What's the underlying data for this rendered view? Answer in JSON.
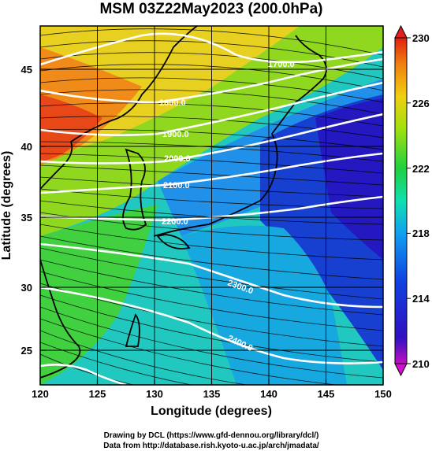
{
  "title": "MSM 03Z22May2023 (200.0hPa)",
  "x_axis": {
    "label": "Longitude (degrees)",
    "range": [
      120,
      150
    ],
    "ticks": [
      "120",
      "125",
      "130",
      "135",
      "140",
      "145",
      "150"
    ]
  },
  "y_axis": {
    "label": "Latitude  (degrees)",
    "range": [
      22.5,
      48
    ],
    "ticks": [
      "25",
      "30",
      "35",
      "40",
      "45"
    ]
  },
  "colorbar": {
    "range": [
      210,
      230
    ],
    "ticks": [
      "210",
      "214",
      "218",
      "222",
      "226",
      "230"
    ]
  },
  "contours": [
    {
      "label": "1700.0"
    },
    {
      "label": "1800.0"
    },
    {
      "label": "1900.0"
    },
    {
      "label": "2000.0"
    },
    {
      "label": "2100.0"
    },
    {
      "label": "2200.0"
    },
    {
      "label": "2300.0"
    },
    {
      "label": "2400.0"
    }
  ],
  "credits": {
    "line1": "Drawing by DCL (https://www.gfd-dennou.org/library/dcl/)",
    "line2": "Data from http://database.rish.kyoto-u.ac.jp/arch/jmadata/"
  },
  "colors": {
    "high": "#e03a10",
    "mid": "#22cc22",
    "low": "#1010cc",
    "contour": "#ffffff",
    "streamline": "#000000"
  }
}
